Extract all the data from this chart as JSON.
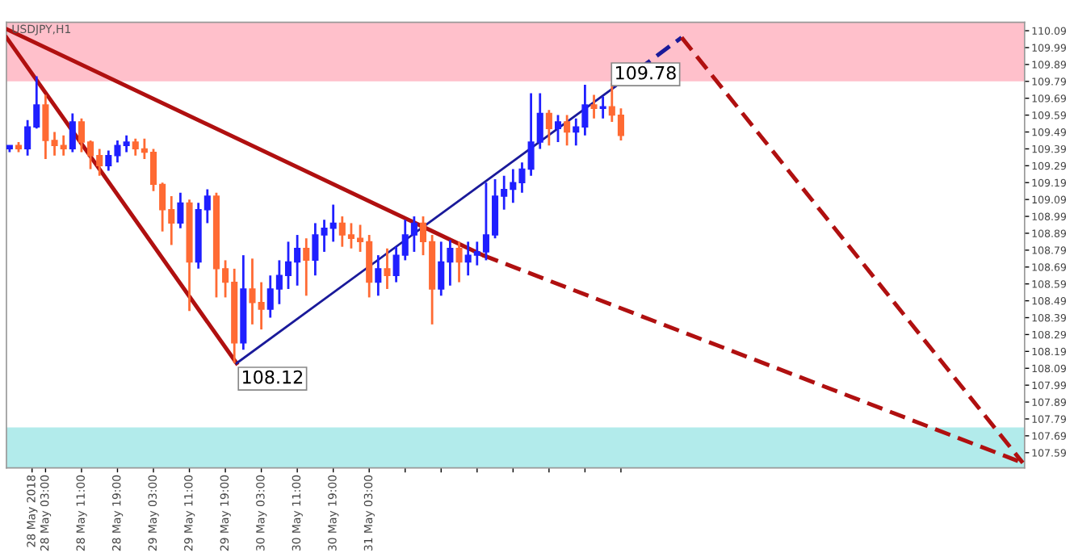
{
  "chart_data": {
    "type": "candlestick",
    "title": "USDJPY,H1",
    "x": [
      "2018-05-27T19:00",
      "2018-05-27T21:00",
      "2018-05-27T23:00",
      "2018-05-28T01:00",
      "2018-05-28T03:00",
      "2018-05-28T05:00",
      "2018-05-28T07:00",
      "2018-05-28T09:00",
      "2018-05-28T11:00",
      "2018-05-28T13:00",
      "2018-05-28T15:00",
      "2018-05-28T17:00",
      "2018-05-28T19:00",
      "2018-05-28T21:00",
      "2018-05-28T23:00",
      "2018-05-29T01:00",
      "2018-05-29T03:00",
      "2018-05-29T05:00",
      "2018-05-29T07:00",
      "2018-05-29T09:00",
      "2018-05-29T11:00",
      "2018-05-29T13:00",
      "2018-05-29T15:00",
      "2018-05-29T17:00",
      "2018-05-29T19:00",
      "2018-05-29T21:00",
      "2018-05-29T23:00",
      "2018-05-30T01:00",
      "2018-05-30T03:00",
      "2018-05-30T05:00",
      "2018-05-30T07:00",
      "2018-05-30T09:00",
      "2018-05-30T11:00",
      "2018-05-30T13:00",
      "2018-05-30T15:00",
      "2018-05-30T17:00",
      "2018-05-30T19:00",
      "2018-05-30T21:00",
      "2018-05-30T23:00",
      "2018-05-31T01:00",
      "2018-05-31T03:00",
      "2018-05-31T05:00",
      "2018-05-31T07:00",
      "2018-05-31T09:00",
      "2018-05-31T11:00",
      "2018-05-31T13:00",
      "2018-05-31T15:00",
      "2018-05-31T17:00",
      "2018-05-31T19:00",
      "2018-05-31T21:00",
      "2018-05-31T23:00",
      "2018-06-01T01:00",
      "2018-06-01T03:00",
      "2018-06-01T05:00",
      "2018-06-01T07:00",
      "2018-06-01T09:00",
      "2018-06-01T11:00",
      "2018-06-01T13:00",
      "2018-06-01T15:00",
      "2018-06-01T17:00",
      "2018-06-01T19:00",
      "2018-06-01T21:00",
      "2018-06-01T23:00",
      "2018-06-02T01:00",
      "2018-06-02T03:00",
      "2018-06-02T05:00",
      "2018-06-02T07:00",
      "2018-06-02T09:00",
      "2018-06-02T11:00"
    ],
    "ohlc": [
      [
        109.39,
        109.41,
        109.37,
        109.41
      ],
      [
        109.41,
        109.43,
        109.37,
        109.39
      ],
      [
        109.39,
        109.56,
        109.35,
        109.52
      ],
      [
        109.52,
        109.82,
        109.51,
        109.65
      ],
      [
        109.65,
        109.71,
        109.33,
        109.44
      ],
      [
        109.44,
        109.49,
        109.35,
        109.41
      ],
      [
        109.41,
        109.47,
        109.35,
        109.39
      ],
      [
        109.39,
        109.6,
        109.37,
        109.55
      ],
      [
        109.55,
        109.57,
        109.37,
        109.43
      ],
      [
        109.43,
        109.44,
        109.27,
        109.35
      ],
      [
        109.35,
        109.39,
        109.23,
        109.29
      ],
      [
        109.29,
        109.38,
        109.26,
        109.35
      ],
      [
        109.35,
        109.44,
        109.31,
        109.41
      ],
      [
        109.41,
        109.47,
        109.37,
        109.43
      ],
      [
        109.43,
        109.45,
        109.35,
        109.39
      ],
      [
        109.39,
        109.45,
        109.33,
        109.37
      ],
      [
        109.37,
        109.39,
        109.14,
        109.18
      ],
      [
        109.18,
        109.19,
        108.9,
        109.03
      ],
      [
        109.03,
        109.11,
        108.82,
        108.95
      ],
      [
        108.95,
        109.13,
        108.92,
        109.07
      ],
      [
        109.07,
        109.09,
        108.43,
        108.72
      ],
      [
        108.72,
        109.07,
        108.68,
        109.03
      ],
      [
        109.03,
        109.15,
        108.95,
        109.11
      ],
      [
        109.11,
        109.13,
        108.51,
        108.68
      ],
      [
        108.68,
        108.73,
        108.51,
        108.6
      ],
      [
        108.6,
        108.68,
        108.12,
        108.24
      ],
      [
        108.24,
        108.76,
        108.2,
        108.56
      ],
      [
        108.56,
        108.74,
        108.35,
        108.48
      ],
      [
        108.48,
        108.6,
        108.32,
        108.44
      ],
      [
        108.44,
        108.64,
        108.39,
        108.56
      ],
      [
        108.56,
        108.73,
        108.47,
        108.64
      ],
      [
        108.64,
        108.84,
        108.56,
        108.72
      ],
      [
        108.72,
        108.88,
        108.58,
        108.8
      ],
      [
        108.8,
        108.86,
        108.52,
        108.73
      ],
      [
        108.73,
        108.95,
        108.64,
        108.88
      ],
      [
        108.88,
        108.97,
        108.78,
        108.92
      ],
      [
        108.92,
        109.06,
        108.84,
        108.95
      ],
      [
        108.95,
        108.99,
        108.81,
        108.88
      ],
      [
        108.88,
        108.95,
        108.8,
        108.86
      ],
      [
        108.86,
        108.94,
        108.78,
        108.84
      ],
      [
        108.84,
        108.88,
        108.51,
        108.6
      ],
      [
        108.6,
        108.76,
        108.52,
        108.68
      ],
      [
        108.68,
        108.8,
        108.56,
        108.64
      ],
      [
        108.64,
        108.81,
        108.6,
        108.76
      ],
      [
        108.76,
        108.97,
        108.73,
        108.88
      ],
      [
        108.88,
        108.99,
        108.78,
        108.95
      ],
      [
        108.95,
        108.99,
        108.76,
        108.84
      ],
      [
        108.84,
        108.88,
        108.35,
        108.56
      ],
      [
        108.56,
        108.84,
        108.52,
        108.72
      ],
      [
        108.72,
        108.85,
        108.58,
        108.8
      ],
      [
        108.8,
        108.84,
        108.6,
        108.72
      ],
      [
        108.72,
        108.84,
        108.64,
        108.76
      ],
      [
        108.76,
        108.84,
        108.7,
        108.78
      ],
      [
        108.78,
        109.19,
        108.73,
        108.88
      ],
      [
        108.88,
        109.21,
        108.86,
        109.11
      ],
      [
        109.11,
        109.23,
        109.03,
        109.15
      ],
      [
        109.15,
        109.27,
        109.07,
        109.19
      ],
      [
        109.19,
        109.31,
        109.13,
        109.27
      ],
      [
        109.27,
        109.72,
        109.23,
        109.43
      ],
      [
        109.43,
        109.72,
        109.39,
        109.6
      ],
      [
        109.6,
        109.62,
        109.41,
        109.51
      ],
      [
        109.51,
        109.59,
        109.43,
        109.55
      ],
      [
        109.55,
        109.59,
        109.41,
        109.49
      ],
      [
        109.49,
        109.57,
        109.41,
        109.52
      ],
      [
        109.52,
        109.77,
        109.47,
        109.65
      ],
      [
        109.65,
        109.71,
        109.57,
        109.63
      ],
      [
        109.63,
        109.7,
        109.57,
        109.64
      ],
      [
        109.64,
        109.78,
        109.55,
        109.59
      ],
      [
        109.59,
        109.63,
        109.44,
        109.47
      ]
    ],
    "colors": [
      "#1f1fff",
      "#ff6a33",
      "#1f1fff",
      "#1f1fff",
      "#ff6a33",
      "#ff6a33",
      "#ff6a33",
      "#1f1fff",
      "#ff6a33",
      "#ff6a33",
      "#ff6a33",
      "#1f1fff",
      "#1f1fff",
      "#1f1fff",
      "#ff6a33",
      "#ff6a33",
      "#ff6a33",
      "#ff6a33",
      "#ff6a33",
      "#1f1fff",
      "#ff6a33",
      "#1f1fff",
      "#1f1fff",
      "#ff6a33",
      "#ff6a33",
      "#ff6a33",
      "#1f1fff",
      "#ff6a33",
      "#ff6a33",
      "#1f1fff",
      "#1f1fff",
      "#1f1fff",
      "#1f1fff",
      "#ff6a33",
      "#1f1fff",
      "#1f1fff",
      "#1f1fff",
      "#ff6a33",
      "#ff6a33",
      "#ff6a33",
      "#ff6a33",
      "#1f1fff",
      "#ff6a33",
      "#1f1fff",
      "#1f1fff",
      "#1f1fff",
      "#ff6a33",
      "#ff6a33",
      "#1f1fff",
      "#1f1fff",
      "#ff6a33",
      "#1f1fff",
      "#1f1fff",
      "#1f1fff",
      "#1f1fff",
      "#1f1fff",
      "#1f1fff",
      "#1f1fff",
      "#1f1fff",
      "#1f1fff",
      "#ff6a33",
      "#1f1fff",
      "#ff6a33",
      "#1f1fff",
      "#1f1fff",
      "#ff6a33",
      "#1f1fff",
      "#ff6a33",
      "#ff6a33"
    ],
    "series": [
      {
        "type": "line",
        "color": "#b01010",
        "line_style": "solid",
        "x": [
          "2018-05-27T18:18",
          "2018-05-29T21:30"
        ],
        "values": [
          110.05,
          108.12
        ]
      },
      {
        "type": "line",
        "color": "#b01010",
        "line_style": "solid",
        "x": [
          "2018-05-27T18:18",
          "2018-06-01T04:18"
        ],
        "values": [
          110.1,
          108.76
        ]
      },
      {
        "type": "line",
        "color": "#b01010",
        "line_style": "dashed",
        "x": [
          "2018-06-01T04:18",
          "2018-06-06T04:24"
        ],
        "values": [
          108.76,
          107.53
        ]
      },
      {
        "type": "line",
        "color": "#1a1a9a",
        "line_style": "solid",
        "x": [
          "2018-05-29T21:30",
          "2018-06-02T10:18"
        ],
        "values": [
          108.12,
          109.77
        ]
      },
      {
        "type": "line",
        "color": "#1a1a9a",
        "line_style": "dashed",
        "x": [
          "2018-06-02T10:18",
          "2018-06-03T00:30"
        ],
        "values": [
          109.77,
          110.05
        ]
      },
      {
        "type": "line",
        "color": "#b01010",
        "line_style": "dashed",
        "x": [
          "2018-06-03T00:30",
          "2018-06-06T04:24"
        ],
        "values": [
          110.05,
          107.53
        ]
      }
    ],
    "annotations": [
      {
        "text": "108.12",
        "x": "2018-05-29T21:00",
        "y": 108.12
      },
      {
        "text": "109.78",
        "x": "2018-06-02T09:00",
        "y": 109.78
      }
    ],
    "bands": [
      {
        "axis": "y",
        "from": 109.79,
        "to": 110.14,
        "color": "#ffc0cb"
      },
      {
        "axis": "y",
        "from": 107.5,
        "to": 107.74,
        "color": "#b2ebeb"
      }
    ],
    "xlim": [
      "2018-05-27T18:18",
      "2018-06-06T04:48"
    ],
    "ylim": [
      107.5,
      110.14
    ],
    "xticks": [
      {
        "value": "2018-05-28T00:00",
        "label": "28 May 2018"
      },
      {
        "value": "2018-05-28T03:00",
        "label": "28 May 03:00"
      },
      {
        "value": "2018-05-28T11:00",
        "label": "28 May 11:00"
      },
      {
        "value": "2018-05-28T19:00",
        "label": "28 May 19:00"
      },
      {
        "value": "2018-05-29T03:00",
        "label": "29 May 03:00"
      },
      {
        "value": "2018-05-29T11:00",
        "label": "29 May 11:00"
      },
      {
        "value": "2018-05-29T19:00",
        "label": "29 May 19:00"
      },
      {
        "value": "2018-05-30T03:00",
        "label": "30 May 03:00"
      },
      {
        "value": "2018-05-30T11:00",
        "label": "30 May 11:00"
      },
      {
        "value": "2018-05-30T19:00",
        "label": "30 May 19:00"
      },
      {
        "value": "2018-05-31T03:00",
        "label": "31 May 03:00"
      },
      {
        "value": "2018-05-31T11:00",
        "label": null
      },
      {
        "value": "2018-05-31T19:00",
        "label": null
      },
      {
        "value": "2018-06-01T03:00",
        "label": null
      },
      {
        "value": "2018-06-01T11:00",
        "label": null
      },
      {
        "value": "2018-06-01T19:00",
        "label": null
      },
      {
        "value": "2018-06-02T03:00",
        "label": null
      },
      {
        "value": "2018-06-02T11:00",
        "label": null
      }
    ],
    "yticks": [
      107.59,
      107.69,
      107.79,
      107.89,
      107.99,
      108.09,
      108.19,
      108.29,
      108.39,
      108.49,
      108.59,
      108.69,
      108.79,
      108.89,
      108.99,
      109.09,
      109.19,
      109.29,
      109.39,
      109.49,
      109.59,
      109.69,
      109.79,
      109.89,
      109.99,
      110.09
    ],
    "grid": false
  }
}
